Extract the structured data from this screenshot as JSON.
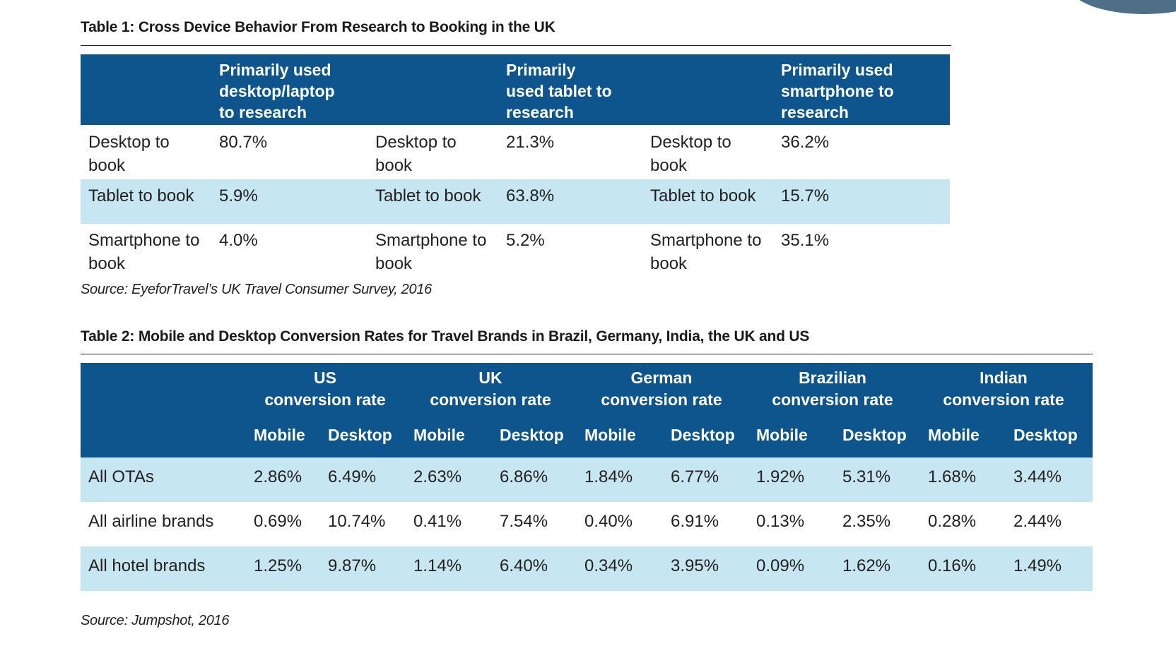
{
  "table1": {
    "title": "Table 1: Cross Device Behavior From Research to Booking in the UK",
    "columns": [
      {
        "header": [
          "Primarily used",
          "desktop/laptop",
          "to research"
        ]
      },
      {
        "header": [
          "Primarily",
          "used tablet to",
          "research"
        ]
      },
      {
        "header": [
          "Primarily used",
          "smartphone to",
          "research"
        ]
      }
    ],
    "rows": [
      {
        "cells": [
          {
            "label": [
              "Desktop to",
              "book"
            ],
            "value": "80.7%"
          },
          {
            "label": [
              "Desktop to",
              "book"
            ],
            "value": "21.3%"
          },
          {
            "label": [
              "Desktop to",
              "book"
            ],
            "value": "36.2%"
          }
        ]
      },
      {
        "cells": [
          {
            "label": [
              "Tablet to book"
            ],
            "value": "5.9%"
          },
          {
            "label": [
              "Tablet to book"
            ],
            "value": "63.8%"
          },
          {
            "label": [
              "Tablet to book"
            ],
            "value": "15.7%"
          }
        ]
      },
      {
        "cells": [
          {
            "label": [
              "Smartphone to",
              "book"
            ],
            "value": "4.0%"
          },
          {
            "label": [
              "Smartphone to",
              "book"
            ],
            "value": "5.2%"
          },
          {
            "label": [
              "Smartphone to",
              "book"
            ],
            "value": "35.1%"
          }
        ]
      }
    ],
    "source": "Source: EyeforTravel’s UK Travel Consumer Survey, 2016"
  },
  "table2": {
    "title": "Table 2: Mobile and Desktop Conversion Rates for Travel Brands in Brazil, Germany, India, the UK and US",
    "groups": [
      {
        "line1": "US",
        "line2": "conversion rate"
      },
      {
        "line1": "UK",
        "line2": "conversion rate"
      },
      {
        "line1": "German",
        "line2": "conversion rate"
      },
      {
        "line1": "Brazilian",
        "line2": "conversion rate"
      },
      {
        "line1": "Indian",
        "line2": "conversion rate"
      }
    ],
    "subheaders": [
      "Mobile",
      "Desktop"
    ],
    "rows": [
      {
        "label": "All OTAs",
        "values": [
          "2.86%",
          "6.49%",
          "2.63%",
          "6.86%",
          "1.84%",
          "6.77%",
          "1.92%",
          "5.31%",
          "1.68%",
          "3.44%"
        ]
      },
      {
        "label": "All airline brands",
        "values": [
          "0.69%",
          "10.74%",
          "0.41%",
          "7.54%",
          "0.40%",
          "6.91%",
          "0.13%",
          "2.35%",
          "0.28%",
          "2.44%"
        ]
      },
      {
        "label": "All hotel brands",
        "values": [
          "1.25%",
          "9.87%",
          "1.14%",
          "6.40%",
          "0.34%",
          "3.95%",
          "0.09%",
          "1.62%",
          "0.16%",
          "1.49%"
        ]
      }
    ],
    "source": "Source: Jumpshot, 2016"
  },
  "colors": {
    "header_bg": "#0d558c",
    "alt_row_bg": "#c6e6f1",
    "corner_accent": "#4f6f86"
  }
}
